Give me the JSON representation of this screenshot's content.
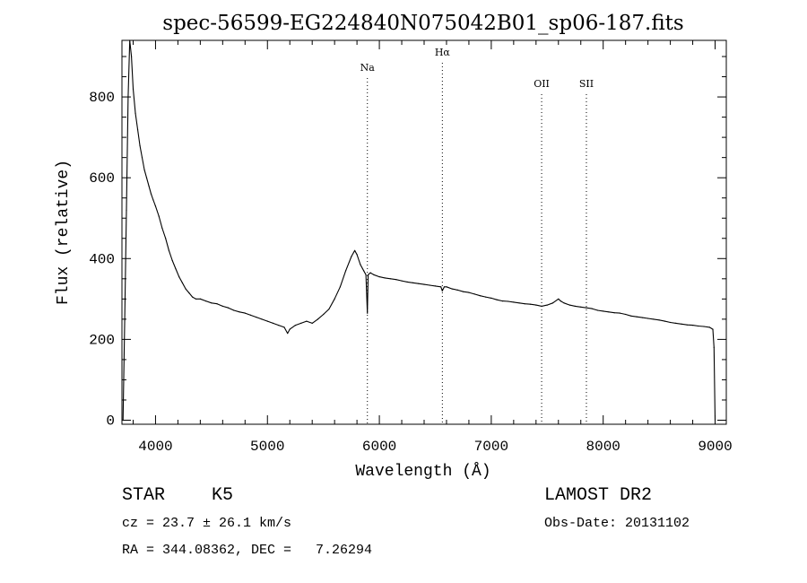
{
  "chart_data": {
    "type": "line",
    "title": "spec-56599-EG224840N075042B01_sp06-187.fits",
    "xlabel": "Wavelength (Å)",
    "ylabel": "Flux (relative)",
    "xlim": [
      3700,
      9100
    ],
    "ylim": [
      -10,
      940
    ],
    "x_ticks": [
      4000,
      5000,
      6000,
      7000,
      8000,
      9000
    ],
    "x_tick_labels": [
      "4000",
      "5000",
      "6000",
      "7000",
      "8000",
      "9000"
    ],
    "y_ticks": [
      0,
      200,
      400,
      600,
      800
    ],
    "y_tick_labels": [
      "0",
      "200",
      "400",
      "600",
      "800"
    ],
    "grid": false,
    "line_color": "#000000",
    "lines": [
      {
        "label": "Na",
        "x": 5893
      },
      {
        "label": "Hα",
        "x": 6563
      },
      {
        "label": "OII",
        "x": 7450
      },
      {
        "label": "SII",
        "x": 7850
      }
    ],
    "series": [
      {
        "x": [
          3710,
          3725,
          3740,
          3755,
          3770,
          3785,
          3800,
          3820,
          3840,
          3860,
          3880,
          3900,
          3920,
          3940,
          3960,
          3980,
          4000,
          4030,
          4060,
          4090,
          4120,
          4150,
          4180,
          4210,
          4240,
          4270,
          4300,
          4330,
          4360,
          4400,
          4450,
          4500,
          4550,
          4600,
          4650,
          4700,
          4750,
          4800,
          4850,
          4900,
          4950,
          5000,
          5050,
          5100,
          5150,
          5180,
          5200,
          5250,
          5300,
          5350,
          5400,
          5450,
          5500,
          5550,
          5600,
          5650,
          5700,
          5750,
          5780,
          5800,
          5830,
          5860,
          5880,
          5893,
          5900,
          5920,
          5950,
          6000,
          6050,
          6100,
          6150,
          6200,
          6250,
          6300,
          6350,
          6400,
          6450,
          6500,
          6550,
          6563,
          6580,
          6600,
          6650,
          6700,
          6750,
          6800,
          6850,
          6900,
          6950,
          7000,
          7050,
          7100,
          7150,
          7200,
          7250,
          7300,
          7350,
          7400,
          7450,
          7500,
          7550,
          7600,
          7620,
          7650,
          7700,
          7750,
          7800,
          7850,
          7900,
          7950,
          8000,
          8050,
          8100,
          8150,
          8200,
          8250,
          8300,
          8350,
          8400,
          8450,
          8500,
          8550,
          8600,
          8650,
          8700,
          8750,
          8800,
          8850,
          8900,
          8950,
          8980,
          8990,
          9000
        ],
        "y": [
          0,
          250,
          520,
          800,
          940,
          900,
          820,
          760,
          720,
          680,
          650,
          620,
          600,
          580,
          560,
          545,
          530,
          505,
          475,
          450,
          420,
          395,
          375,
          355,
          340,
          325,
          315,
          305,
          300,
          300,
          295,
          290,
          288,
          282,
          278,
          272,
          268,
          265,
          260,
          255,
          250,
          245,
          240,
          235,
          230,
          215,
          225,
          235,
          240,
          245,
          240,
          250,
          262,
          275,
          300,
          330,
          370,
          405,
          420,
          410,
          385,
          370,
          360,
          265,
          360,
          365,
          360,
          355,
          352,
          350,
          348,
          345,
          342,
          340,
          338,
          336,
          334,
          332,
          330,
          320,
          330,
          330,
          325,
          322,
          318,
          316,
          312,
          308,
          305,
          302,
          298,
          295,
          294,
          292,
          290,
          288,
          287,
          285,
          282,
          285,
          290,
          300,
          295,
          290,
          285,
          282,
          280,
          278,
          276,
          272,
          270,
          268,
          266,
          265,
          262,
          258,
          256,
          254,
          252,
          250,
          248,
          245,
          242,
          240,
          238,
          236,
          235,
          233,
          232,
          230,
          225,
          180,
          0
        ]
      }
    ]
  },
  "info": {
    "object_type": "STAR",
    "subclass": "K5",
    "survey": "LAMOST DR2",
    "cz": "cz = 23.7 ± 26.1 km/s",
    "obs_date": "Obs-Date: 20131102",
    "coords": "RA = 344.08362, DEC =   7.26294"
  }
}
